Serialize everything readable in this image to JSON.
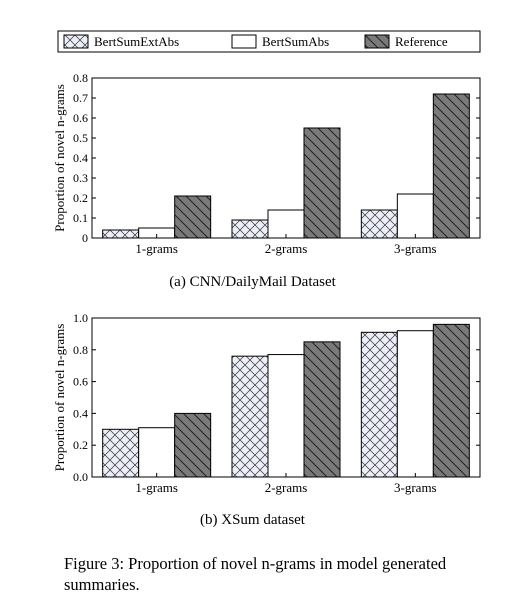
{
  "legend": [
    {
      "label": "BertSumExtAbs",
      "pattern": "crosshatch",
      "fill": "#eceef8"
    },
    {
      "label": "BertSumAbs",
      "pattern": "none",
      "fill": "#ffffff"
    },
    {
      "label": "Reference",
      "pattern": "diagonal",
      "fill": "#7a7a7a"
    }
  ],
  "chart_data": [
    {
      "type": "bar",
      "caption": "(a) CNN/DailyMail Dataset",
      "ylabel": "Proportion of novel n-grams",
      "categories": [
        "1-grams",
        "2-grams",
        "3-grams"
      ],
      "ylim": [
        0,
        0.8
      ],
      "yticks": [
        "0",
        "0.1",
        "0.2",
        "0.3",
        "0.4",
        "0.5",
        "0.6",
        "0.7",
        "0.8"
      ],
      "tick_values": [
        0,
        0.1,
        0.2,
        0.3,
        0.4,
        0.5,
        0.6,
        0.7,
        0.8
      ],
      "series": [
        {
          "name": "BertSumExtAbs",
          "values": [
            0.04,
            0.09,
            0.14
          ]
        },
        {
          "name": "BertSumAbs",
          "values": [
            0.05,
            0.14,
            0.22
          ]
        },
        {
          "name": "Reference",
          "values": [
            0.21,
            0.55,
            0.72
          ]
        }
      ]
    },
    {
      "type": "bar",
      "caption": "(b) XSum dataset",
      "ylabel": "Proportion of novel n-grams",
      "categories": [
        "1-grams",
        "2-grams",
        "3-grams"
      ],
      "ylim": [
        0,
        1.0
      ],
      "yticks": [
        "0.0",
        "0.2",
        "0.4",
        "0.6",
        "0.8",
        "1.0"
      ],
      "tick_values": [
        0,
        0.2,
        0.4,
        0.6,
        0.8,
        1.0
      ],
      "series": [
        {
          "name": "BertSumExtAbs",
          "values": [
            0.3,
            0.76,
            0.91
          ]
        },
        {
          "name": "BertSumAbs",
          "values": [
            0.31,
            0.77,
            0.92
          ]
        },
        {
          "name": "Reference",
          "values": [
            0.4,
            0.85,
            0.96
          ]
        }
      ]
    }
  ],
  "figure_caption": "Figure 3: Proportion of novel n-grams in model generated summaries."
}
